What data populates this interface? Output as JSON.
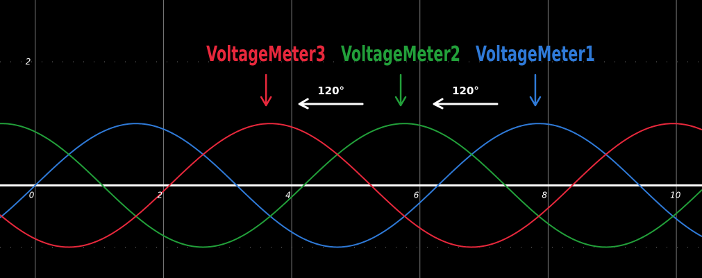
{
  "chart_data": {
    "type": "line",
    "title": "",
    "xlabel": "",
    "ylabel": "",
    "xlim": [
      -0.55,
      10.4
    ],
    "ylim": [
      -1.5,
      3.0
    ],
    "grid": true,
    "x_ticks": [
      {
        "value": 0,
        "label": "0"
      },
      {
        "value": 2,
        "label": "2"
      },
      {
        "value": 4,
        "label": "4"
      },
      {
        "value": 6,
        "label": "6"
      },
      {
        "value": 8,
        "label": "8"
      },
      {
        "value": 10,
        "label": "10"
      }
    ],
    "y_ticks": [
      {
        "value": 2,
        "label": "2"
      }
    ],
    "series": [
      {
        "name": "VoltageMeter1",
        "color": "#2f7ad8",
        "amplitude": 1,
        "angular_frequency": 1,
        "phase_deg": 0
      },
      {
        "name": "VoltageMeter2",
        "color": "#22a03a",
        "amplitude": 1,
        "angular_frequency": 1,
        "phase_deg": 120
      },
      {
        "name": "VoltageMeter3",
        "color": "#e8283c",
        "amplitude": 1,
        "angular_frequency": 1,
        "phase_deg": -120
      }
    ],
    "annotations": [
      {
        "text": "VoltageMeter3",
        "color": "#e8283c",
        "points_to_x": 3.6
      },
      {
        "text": "VoltageMeter2",
        "color": "#22a03a",
        "points_to_x": 5.7
      },
      {
        "text": "VoltageMeter1",
        "color": "#2f7ad8",
        "points_to_x": 7.8
      },
      {
        "text": "120°",
        "color": "#ffffff",
        "between": [
          "VoltageMeter3",
          "VoltageMeter2"
        ]
      },
      {
        "text": "120°",
        "color": "#ffffff",
        "between": [
          "VoltageMeter2",
          "VoltageMeter1"
        ]
      }
    ]
  }
}
